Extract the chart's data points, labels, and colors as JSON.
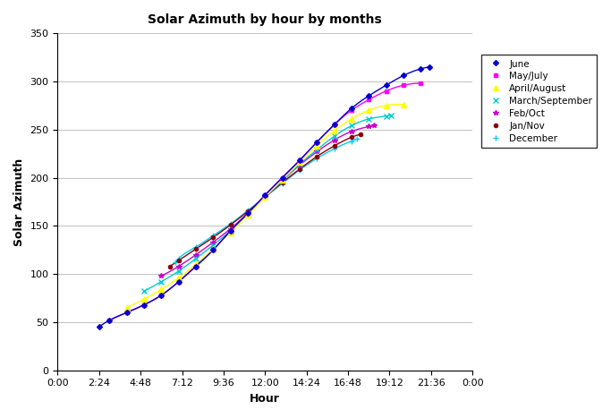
{
  "title": "Solar Azimuth by hour by months",
  "xlabel": "Hour",
  "ylabel": "Solar Azimuth",
  "ylim": [
    0,
    350
  ],
  "yticks": [
    0,
    50,
    100,
    150,
    200,
    250,
    300,
    350
  ],
  "xtick_positions": [
    0,
    2.4,
    4.8,
    7.2,
    9.6,
    12.0,
    14.4,
    16.8,
    19.2,
    21.6,
    24.0
  ],
  "xtick_labels": [
    "0:00",
    "2:24",
    "4:48",
    "7:12",
    "9:36",
    "12:00",
    "14:24",
    "16:48",
    "19:12",
    "21:36",
    "0:00"
  ],
  "series": [
    {
      "label": "June",
      "color": "#0000CC",
      "marker": "D",
      "markersize": 3,
      "hours": [
        2.4,
        3.0,
        4.0,
        5.0,
        6.0,
        7.0,
        8.0,
        9.0,
        10.0,
        11.0,
        12.0,
        13.0,
        14.0,
        15.0,
        16.0,
        17.0,
        18.0,
        19.0,
        20.0,
        21.0,
        21.5
      ],
      "az": [
        45,
        52,
        60,
        68,
        78,
        92,
        108,
        125,
        145,
        163,
        182,
        200,
        218,
        237,
        255,
        272,
        285,
        296,
        306,
        313,
        315
      ]
    },
    {
      "label": "May/July",
      "color": "#FF00FF",
      "marker": "s",
      "markersize": 3,
      "hours": [
        3.0,
        4.0,
        5.0,
        6.0,
        7.0,
        8.0,
        9.0,
        10.0,
        11.0,
        12.0,
        13.0,
        14.0,
        15.0,
        16.0,
        17.0,
        18.0,
        19.0,
        20.0,
        21.0
      ],
      "az": [
        52,
        60,
        68,
        78,
        92,
        108,
        125,
        145,
        163,
        182,
        200,
        218,
        237,
        255,
        270,
        281,
        290,
        296,
        298
      ]
    },
    {
      "label": "April/August",
      "color": "#FFFF00",
      "marker": "^",
      "markersize": 4,
      "hours": [
        4.0,
        5.0,
        6.0,
        7.0,
        8.0,
        9.0,
        10.0,
        11.0,
        12.0,
        13.0,
        14.0,
        15.0,
        16.0,
        17.0,
        18.0,
        19.0,
        20.0
      ],
      "az": [
        65,
        74,
        84,
        96,
        110,
        126,
        143,
        161,
        180,
        198,
        216,
        233,
        249,
        261,
        270,
        275,
        276
      ]
    },
    {
      "label": "March/September",
      "color": "#00CCCC",
      "marker": "x",
      "markersize": 4,
      "hours": [
        5.0,
        6.0,
        7.0,
        8.0,
        9.0,
        10.0,
        11.0,
        12.0,
        13.0,
        14.0,
        15.0,
        16.0,
        17.0,
        18.0,
        19.0,
        19.3
      ],
      "az": [
        82,
        92,
        103,
        116,
        130,
        145,
        162,
        180,
        197,
        214,
        229,
        243,
        254,
        261,
        264,
        265
      ]
    },
    {
      "label": "Feb/Oct",
      "color": "#CC00CC",
      "marker": "*",
      "markersize": 4,
      "hours": [
        6.0,
        7.0,
        8.0,
        9.0,
        10.0,
        11.0,
        12.0,
        13.0,
        14.0,
        15.0,
        16.0,
        17.0,
        18.0,
        18.3
      ],
      "az": [
        98,
        108,
        120,
        133,
        147,
        163,
        180,
        197,
        213,
        227,
        239,
        248,
        253,
        254
      ]
    },
    {
      "label": "Jan/Nov",
      "color": "#8B0000",
      "marker": "o",
      "markersize": 3,
      "hours": [
        6.5,
        7.0,
        8.0,
        9.0,
        10.0,
        11.0,
        12.0,
        13.0,
        14.0,
        15.0,
        16.0,
        17.0,
        17.5
      ],
      "az": [
        108,
        114,
        126,
        138,
        151,
        165,
        180,
        195,
        209,
        222,
        233,
        242,
        245
      ]
    },
    {
      "label": "December",
      "color": "#00CCFF",
      "marker": "+",
      "markersize": 4,
      "hours": [
        6.8,
        7.0,
        8.0,
        9.0,
        10.0,
        11.0,
        12.0,
        13.0,
        14.0,
        15.0,
        16.0,
        17.0,
        17.3
      ],
      "az": [
        112,
        116,
        128,
        140,
        152,
        166,
        180,
        194,
        208,
        220,
        230,
        238,
        240
      ]
    }
  ]
}
